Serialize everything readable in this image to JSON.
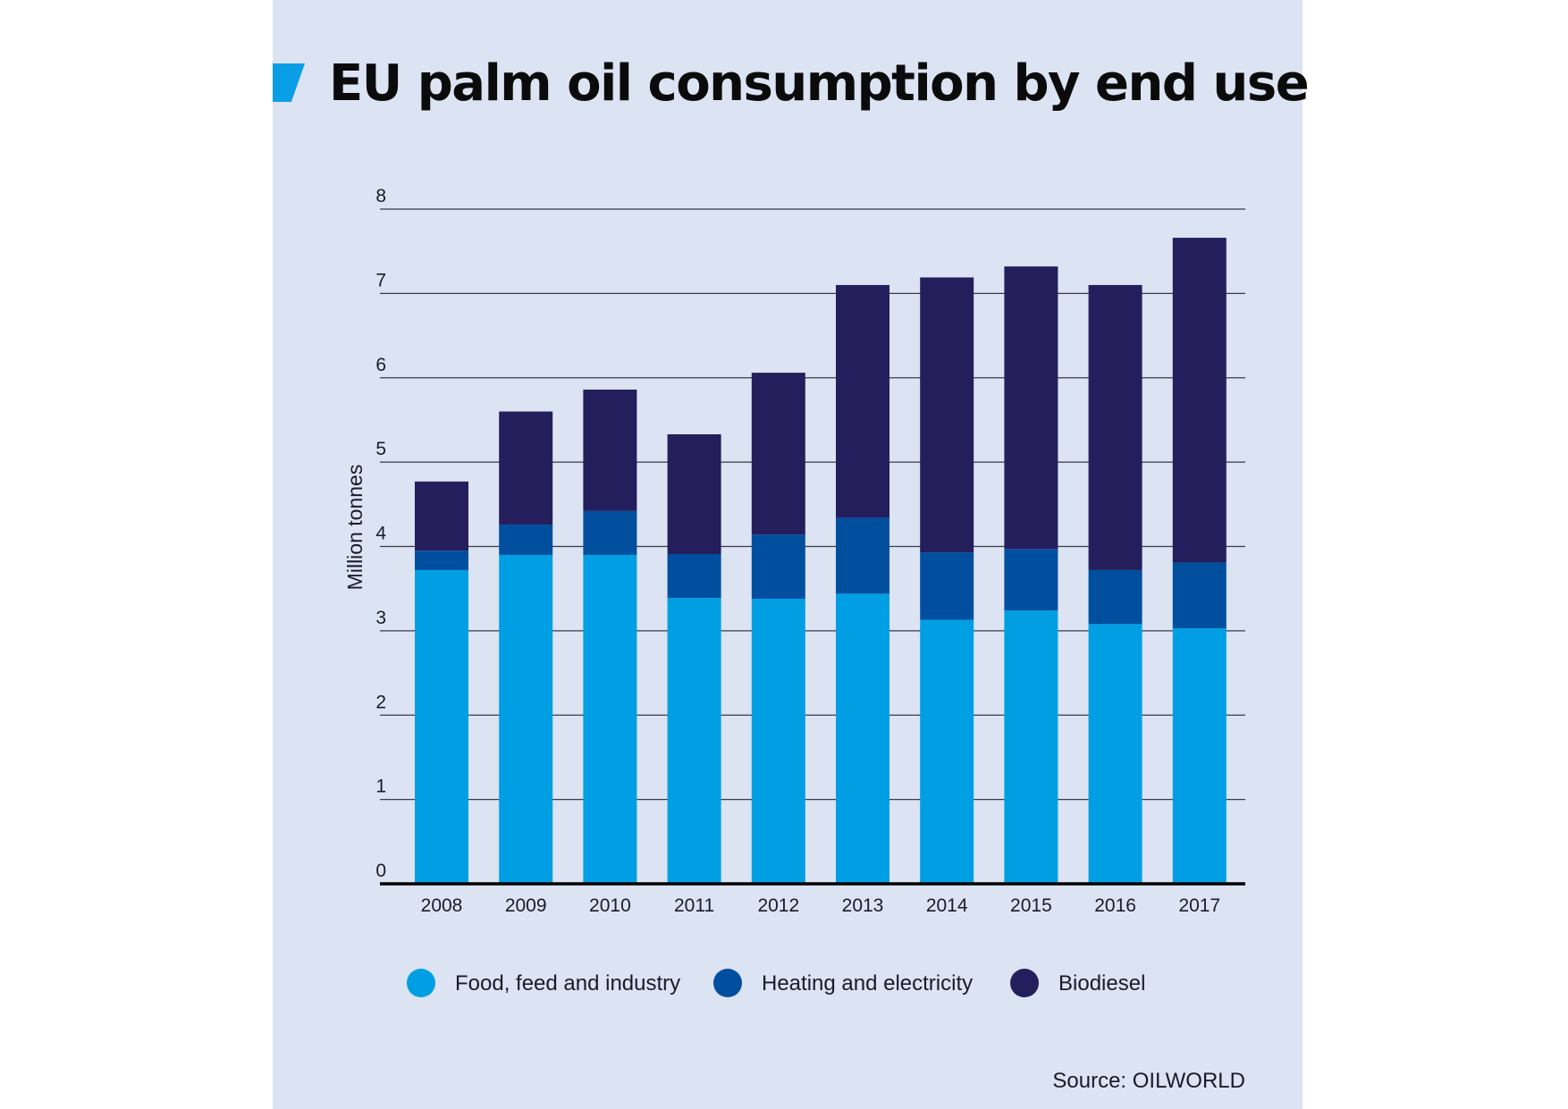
{
  "header": {
    "title": "EU palm oil consumption by end use"
  },
  "footer": {
    "source": "Source: OILWORLD"
  },
  "colors": {
    "background": "#dce3f3",
    "accent": "#0a9ee6",
    "food": "#009fe3",
    "heating": "#004f9f",
    "biodiesel": "#241f5c",
    "gridline": "#3a3a4a",
    "axis": "#000000"
  },
  "icons": {
    "title_accent": "parallelogram-accent-icon",
    "legend_marker": "circle-icon"
  },
  "chart_data": {
    "type": "bar",
    "stacked": true,
    "title": "EU palm oil consumption by end use",
    "xlabel": "",
    "ylabel": "Million tonnes",
    "ylim": [
      0,
      8
    ],
    "yticks": [
      0,
      1,
      2,
      3,
      4,
      5,
      6,
      7,
      8
    ],
    "grid": true,
    "legend_position": "bottom",
    "categories": [
      "2008",
      "2009",
      "2010",
      "2011",
      "2012",
      "2013",
      "2014",
      "2015",
      "2016",
      "2017"
    ],
    "series": [
      {
        "name": "Food, feed and industry",
        "color": "#009fe3",
        "values": [
          3.72,
          3.9,
          3.9,
          3.39,
          3.38,
          3.44,
          3.13,
          3.24,
          3.08,
          3.03
        ]
      },
      {
        "name": "Heating and electricity",
        "color": "#004f9f",
        "values": [
          0.23,
          0.36,
          0.52,
          0.52,
          0.76,
          0.9,
          0.8,
          0.73,
          0.64,
          0.78
        ]
      },
      {
        "name": "Biodiesel",
        "color": "#241f5c",
        "values": [
          0.82,
          1.34,
          1.44,
          1.42,
          1.92,
          2.76,
          3.26,
          3.35,
          3.38,
          3.85
        ]
      }
    ],
    "source": "Source: OILWORLD"
  }
}
